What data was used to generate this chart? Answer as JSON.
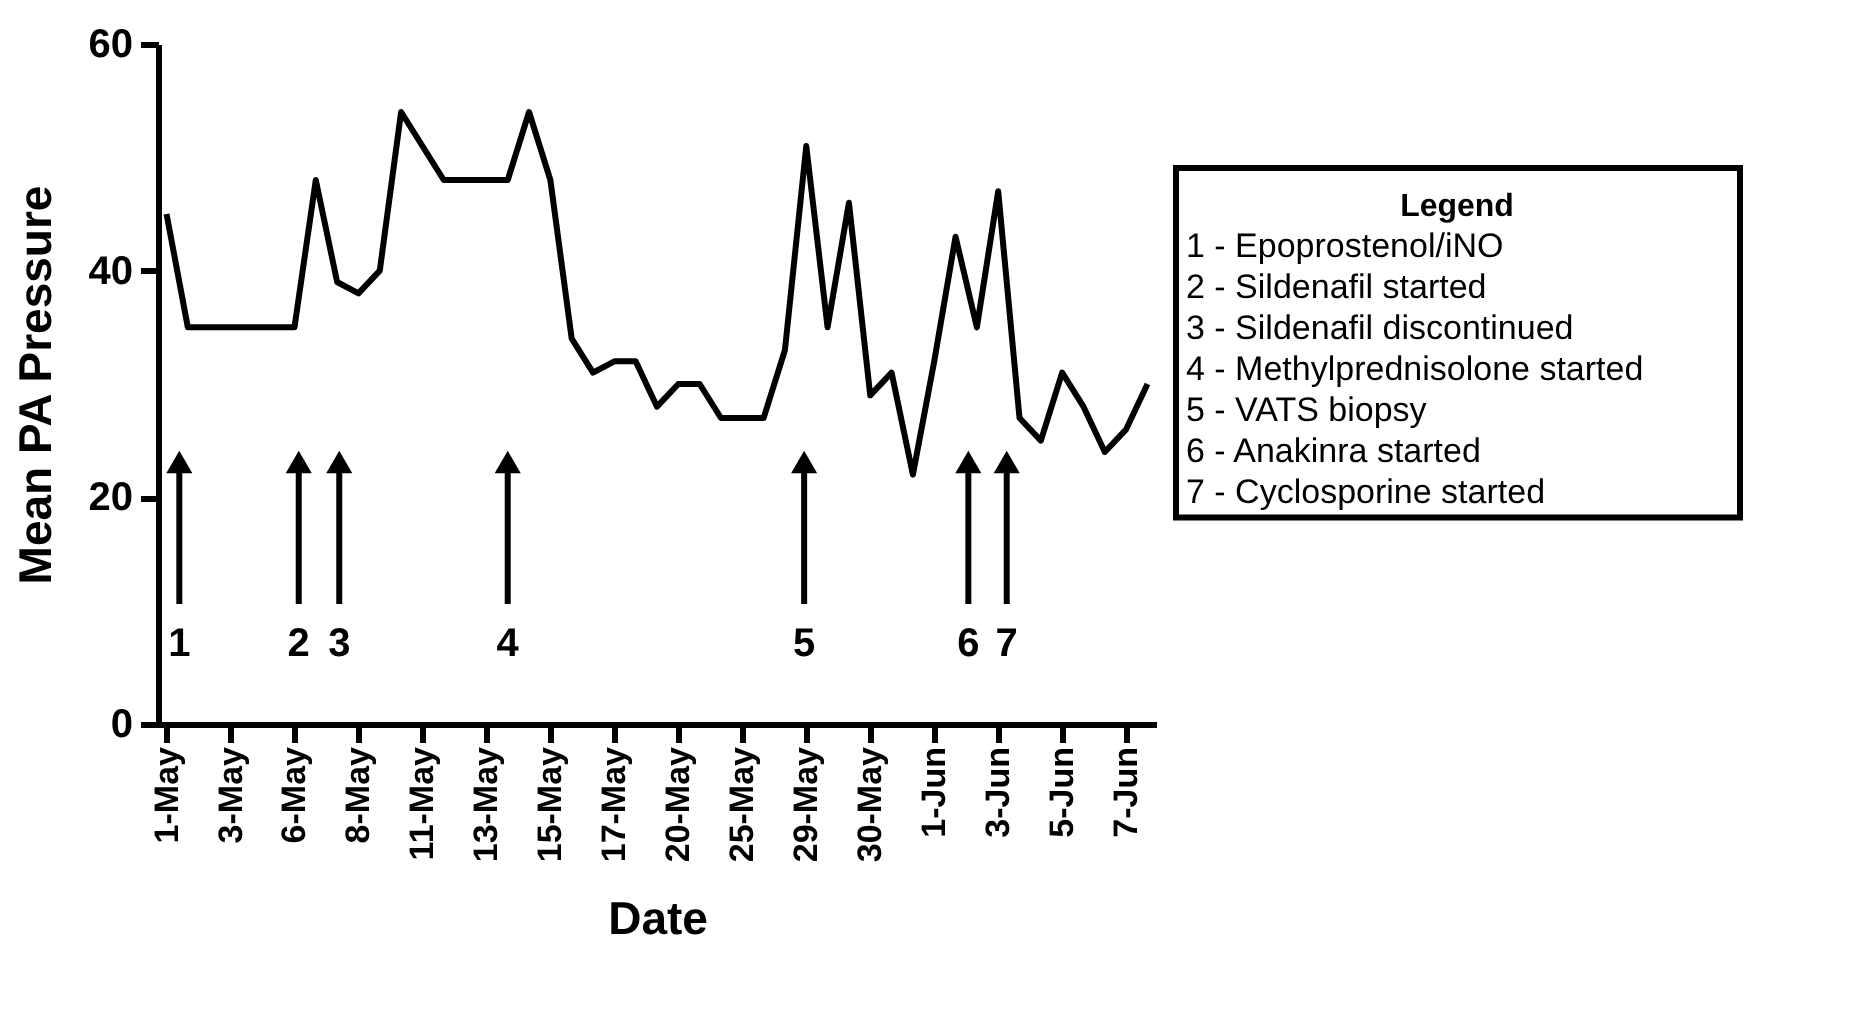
{
  "chart_data": {
    "type": "line",
    "xlabel": "Date",
    "ylabel": "Mean PA Pressure",
    "categories": [
      "1-May",
      null,
      null,
      "3-May",
      null,
      null,
      "6-May",
      null,
      null,
      "8-May",
      null,
      null,
      "11-May",
      null,
      null,
      "13-May",
      null,
      null,
      "15-May",
      null,
      null,
      "17-May",
      null,
      null,
      "20-May",
      null,
      null,
      "25-May",
      null,
      null,
      "29-May",
      null,
      null,
      "30-May",
      null,
      null,
      "1-Jun",
      null,
      null,
      "3-Jun",
      null,
      null,
      "5-Jun",
      null,
      null,
      "7-Jun",
      null
    ],
    "series": [
      {
        "color": "#000000",
        "values": [
          45,
          35,
          35,
          35,
          35,
          35,
          35,
          48,
          39,
          38,
          40,
          54,
          51,
          48,
          48,
          48,
          48,
          54,
          48,
          34,
          31,
          32,
          32,
          28,
          30,
          30,
          27,
          27,
          27,
          33,
          51,
          35,
          46,
          29,
          31,
          22,
          32,
          43,
          35,
          47,
          27,
          25,
          31,
          28,
          24,
          26,
          30
        ]
      }
    ],
    "ylim": [
      0,
      60
    ],
    "yticks": [
      0,
      20,
      40,
      60
    ],
    "grid": false,
    "marker": "none",
    "line_style": "solid",
    "annotations": [
      "1",
      "2",
      "3",
      "4",
      "5",
      "6",
      "7",
      "Legend",
      "1 - Epoprostenol/iNO",
      "2 - Sildenafil started",
      "3 - Sildenafil discontinued",
      "4 - Methylprednisolone started",
      "5 - VATS biopsy",
      "6 - Anakinra started",
      "7 - Cyclosporine started"
    ]
  }
}
